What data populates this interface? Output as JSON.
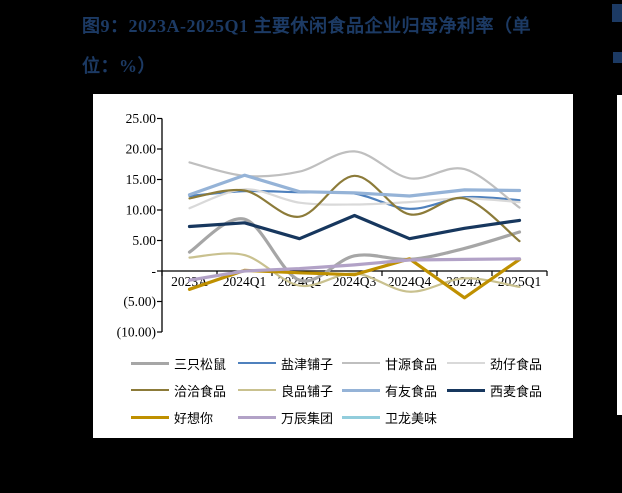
{
  "page": {
    "background_color": "#000000",
    "panel_color": "#FFFFFF",
    "title_color": "#1C3A64"
  },
  "figure": {
    "title_line1": "图9：2023A-2025Q1 主要休闲食品企业归母净利率（单",
    "title_line2": "位：%）"
  },
  "chart_data": {
    "type": "line",
    "title": "2023A-2025Q1 主要休闲食品企业归母净利率",
    "unit": "%",
    "grid": false,
    "legend_position": "bottom",
    "xlabel": "",
    "ylabel": "",
    "ylim": [
      -10,
      25
    ],
    "y_tick_values": [
      25,
      20,
      15,
      10,
      5,
      0,
      -5,
      -10
    ],
    "y_tick_labels": [
      "25.00",
      "20.00",
      "15.00",
      "10.00",
      "5.00",
      "-",
      "(5.00)",
      "(10.00)"
    ],
    "categories": [
      "2023A",
      "2024Q1",
      "2024Q2",
      "2024Q3",
      "2024Q4",
      "2024A",
      "2025Q1"
    ],
    "series": [
      {
        "id": "three-squirrels",
        "name": "三只松鼠",
        "color": "#A6A6A6",
        "width": 3.2,
        "smooth": true,
        "values": [
          3.1,
          8.5,
          -1.5,
          2.5,
          1.9,
          3.7,
          6.4
        ]
      },
      {
        "id": "yanjin-shop",
        "name": "盐津铺子",
        "color": "#4F81BD",
        "width": 2.2,
        "smooth": true,
        "values": [
          12.3,
          13.1,
          12.9,
          12.7,
          10.2,
          12.1,
          11.6
        ]
      },
      {
        "id": "ganyuan-foods",
        "name": "甘源食品",
        "color": "#BFBFBF",
        "width": 2.2,
        "smooth": true,
        "values": [
          17.8,
          15.6,
          16.3,
          19.6,
          15.2,
          16.7,
          10.4
        ]
      },
      {
        "id": "jinzai-foods",
        "name": "劲仔食品",
        "color": "#D9D9D9",
        "width": 2.2,
        "smooth": true,
        "values": [
          10.3,
          13.4,
          11.2,
          10.9,
          11.3,
          11.9,
          11.3
        ]
      },
      {
        "id": "qiaqia-foods",
        "name": "洽洽食品",
        "color": "#8C7B39",
        "width": 2.2,
        "smooth": true,
        "values": [
          11.9,
          13.2,
          8.9,
          15.6,
          9.3,
          11.9,
          4.9
        ]
      },
      {
        "id": "bestore",
        "name": "良品铺子",
        "color": "#C9C18F",
        "width": 2.2,
        "smooth": true,
        "values": [
          2.2,
          2.6,
          -2.4,
          -0.4,
          -3.4,
          -1.2,
          -2.6
        ]
      },
      {
        "id": "youyou-foods",
        "name": "有友食品",
        "color": "#95B3D7",
        "width": 3.2,
        "smooth": false,
        "values": [
          12.5,
          15.7,
          13.0,
          12.8,
          12.3,
          13.3,
          13.2
        ]
      },
      {
        "id": "ximai-foods",
        "name": "西麦食品",
        "color": "#17375E",
        "width": 3.2,
        "smooth": false,
        "values": [
          7.3,
          7.9,
          5.3,
          9.1,
          5.3,
          7.0,
          8.3
        ]
      },
      {
        "id": "haoxiangni",
        "name": "好想你",
        "color": "#BF9000",
        "width": 3.2,
        "smooth": false,
        "values": [
          -3.0,
          0.1,
          -0.3,
          -0.6,
          2.0,
          -4.4,
          1.9
        ]
      },
      {
        "id": "wanchen-group",
        "name": "万辰集团",
        "color": "#B2A2C7",
        "width": 3.2,
        "smooth": false,
        "values": [
          -1.5,
          0.0,
          0.4,
          1.0,
          1.8,
          1.9,
          2.0
        ]
      },
      {
        "id": "weilong-delicious",
        "name": "卫龙美味",
        "color": "#92CDDC",
        "width": 3.2,
        "smooth": false,
        "visible_in_plot": false,
        "values": [
          null,
          null,
          null,
          null,
          null,
          null,
          null
        ]
      }
    ]
  }
}
